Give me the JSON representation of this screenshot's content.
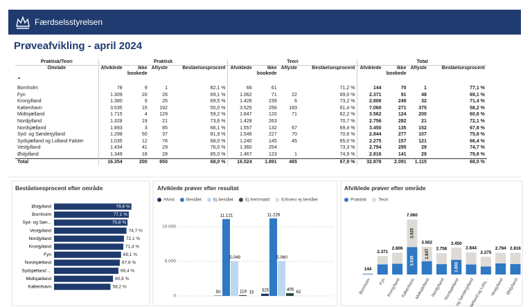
{
  "header": {
    "logo_text": "Færdselsstyrelsen"
  },
  "title": "Prøveafvikling - april 2024",
  "table": {
    "group_headers": [
      "Praktisk/Teori",
      "Praktisk",
      "Teori",
      "Total"
    ],
    "columns": [
      "Område",
      "Afviklede",
      "Ikke bookede",
      "Aflyste",
      "Beståelsesprocent",
      "Afviklede",
      "Ikke bookede",
      "Aflyste",
      "Beståelsesprocent",
      "Afviklede",
      "Ikke bookede",
      "Aflyste",
      "Beståelsesprocent"
    ],
    "rows": [
      [
        "Bornholm",
        "78",
        "9",
        "1",
        "82,1 %",
        "66",
        "61",
        null,
        "71,2 %",
        "144",
        "70",
        "1",
        "77,1 %"
      ],
      [
        "Fyn",
        "1.309",
        "20",
        "26",
        "69,1 %",
        "1.062",
        "71",
        "22",
        "69,0 %",
        "2.371",
        "91",
        "48",
        "69,1 %"
      ],
      [
        "Kronjylland",
        "1.380",
        "9",
        "26",
        "69,5 %",
        "1.426",
        "239",
        "6",
        "73,2 %",
        "2.806",
        "248",
        "32",
        "71,4 %"
      ],
      [
        "København",
        "3.535",
        "15",
        "192",
        "55,0 %",
        "3.525",
        "256",
        "183",
        "61,4 %",
        "7.060",
        "271",
        "375",
        "58,2 %"
      ],
      [
        "Midtsjælland",
        "1.715",
        "4",
        "129",
        "59,2 %",
        "1.847",
        "120",
        "71",
        "62,2 %",
        "3.562",
        "124",
        "200",
        "60,8 %"
      ],
      [
        "Nordjylland",
        "1.328",
        "19",
        "21",
        "73,6 %",
        "1.428",
        "263",
        null,
        "70,7 %",
        "2.756",
        "282",
        "21",
        "72,1 %"
      ],
      [
        "Nordsjælland",
        "1.893",
        "3",
        "85",
        "66,1 %",
        "1.557",
        "132",
        "67",
        "69,4 %",
        "3.450",
        "135",
        "152",
        "67,8 %"
      ],
      [
        "Syd- og Sønderjylland",
        "1.298",
        "50",
        "37",
        "81,9 %",
        "1.546",
        "227",
        "70",
        "70,6 %",
        "2.844",
        "277",
        "107",
        "75,8 %"
      ],
      [
        "Sydsjælland og Lolland Falster",
        "1.035",
        "12",
        "76",
        "68,0 %",
        "1.240",
        "145",
        "45",
        "65,0 %",
        "2.275",
        "157",
        "121",
        "66,4 %"
      ],
      [
        "Vestjylland",
        "1.434",
        "41",
        "29",
        "76,0 %",
        "1.360",
        "254",
        null,
        "73,3 %",
        "2.794",
        "295",
        "29",
        "74,7 %"
      ],
      [
        "Østjylland",
        "1.349",
        "18",
        "28",
        "85,0 %",
        "1.467",
        "123",
        "1",
        "74,9 %",
        "2.816",
        "141",
        "29",
        "79,8 %"
      ]
    ],
    "total": [
      "Total",
      "16.354",
      "200",
      "650",
      "68,0 %",
      "16.524",
      "1.891",
      "465",
      "67,9 %",
      "32.878",
      "2.091",
      "1.115",
      "68,0 %"
    ]
  },
  "chart_data": [
    {
      "type": "horizontal_bar",
      "title": "Beståelsesprocent efter område",
      "categories": [
        "Østjylland",
        "Bornholm",
        "Syd- og Søn...",
        "Vestjylland",
        "Nordjylland",
        "Kronjylland",
        "Fyn",
        "Nordsjælland",
        "Sydsjælland ...",
        "Midtsjælland",
        "København"
      ],
      "values": [
        79.8,
        77.1,
        75.8,
        74.7,
        72.1,
        71.4,
        69.1,
        67.8,
        66.4,
        60.8,
        58.2
      ],
      "value_labels": [
        "79,8 %",
        "77,1 %",
        "75,8 %",
        "74,7 %",
        "72,1 %",
        "71,4 %",
        "69,1 %",
        "67,8 %",
        "66,4 %",
        "60,8 %",
        "58,2 %"
      ],
      "color": "#1f3a6e",
      "xlim": [
        0,
        100
      ]
    },
    {
      "type": "grouped_bar",
      "title": "Afviklede prøver efter resultat",
      "categories": [
        null,
        null
      ],
      "series": [
        {
          "name": "Afvist",
          "color": "#1d3461",
          "values": [
            50,
            325
          ],
          "value_labels": [
            "50",
            "325"
          ]
        },
        {
          "name": "Bestået",
          "color": "#2f78c4",
          "values": [
            11121,
            11226
          ],
          "value_labels": [
            "11.121",
            "11.226"
          ]
        },
        {
          "name": "Ej bestået",
          "color": "#bcd8f0",
          "values": [
            5049,
            5060
          ],
          "value_labels": [
            "5.049",
            "5.060"
          ]
        },
        {
          "name": "Ej fremmødt",
          "color": "#2f4a3a",
          "values": [
            119,
            405
          ],
          "value_labels": [
            "119",
            "405"
          ]
        },
        {
          "name": "Erhverv ej bestået",
          "color": "#dcdcdc",
          "values": [
            15,
            62
          ],
          "value_labels": [
            "15",
            "62"
          ]
        }
      ],
      "ylim": [
        0,
        12000
      ],
      "yticks": [
        0,
        {
          "value": 5000,
          "label": "5.000"
        },
        {
          "value": 10000,
          "label": "10.000"
        }
      ],
      "grid": true
    },
    {
      "type": "stacked_bar",
      "title": "Afviklede prøver efter område",
      "categories": [
        "Bornholm",
        "Fyn",
        "Kronjylland",
        "København",
        "Midtsjælland",
        "Nordjylland",
        "Nordsjælland",
        "Syd- og Sønderjylland",
        "Sydsjælland og Lolla...",
        "Vestjylland",
        "Østjylland"
      ],
      "series": [
        {
          "name": "Praktisk",
          "color": "#2f78c4",
          "values": [
            78,
            1309,
            1380,
            3535,
            1715,
            1328,
            1893,
            1298,
            1035,
            1434,
            1349
          ],
          "value_labels": [
            null,
            null,
            null,
            "3.535",
            null,
            null,
            "1.893",
            null,
            null,
            null,
            null
          ]
        },
        {
          "name": "Teori",
          "color": "#dedbd6",
          "values": [
            66,
            1062,
            1426,
            3525,
            1847,
            1428,
            1557,
            1546,
            1240,
            1360,
            1467
          ],
          "value_labels": [
            null,
            null,
            null,
            "3.525",
            "1.847",
            null,
            null,
            null,
            null,
            null,
            null
          ]
        }
      ],
      "totals": [
        {
          "value": 144,
          "label": "144"
        },
        {
          "value": 2371,
          "label": "2.371"
        },
        {
          "value": 2806,
          "label": "2.806"
        },
        {
          "value": 7060,
          "label": "7.060"
        },
        {
          "value": 3562,
          "label": "3.562"
        },
        {
          "value": 2756,
          "label": "2.756"
        },
        {
          "value": 3450,
          "label": "3.450"
        },
        {
          "value": 2844,
          "label": "2.844"
        },
        {
          "value": 2275,
          "label": "2.275"
        },
        {
          "value": 2794,
          "label": "2.794"
        },
        {
          "value": 2816,
          "label": "2.816"
        }
      ],
      "ylim": [
        0,
        8000
      ]
    }
  ]
}
